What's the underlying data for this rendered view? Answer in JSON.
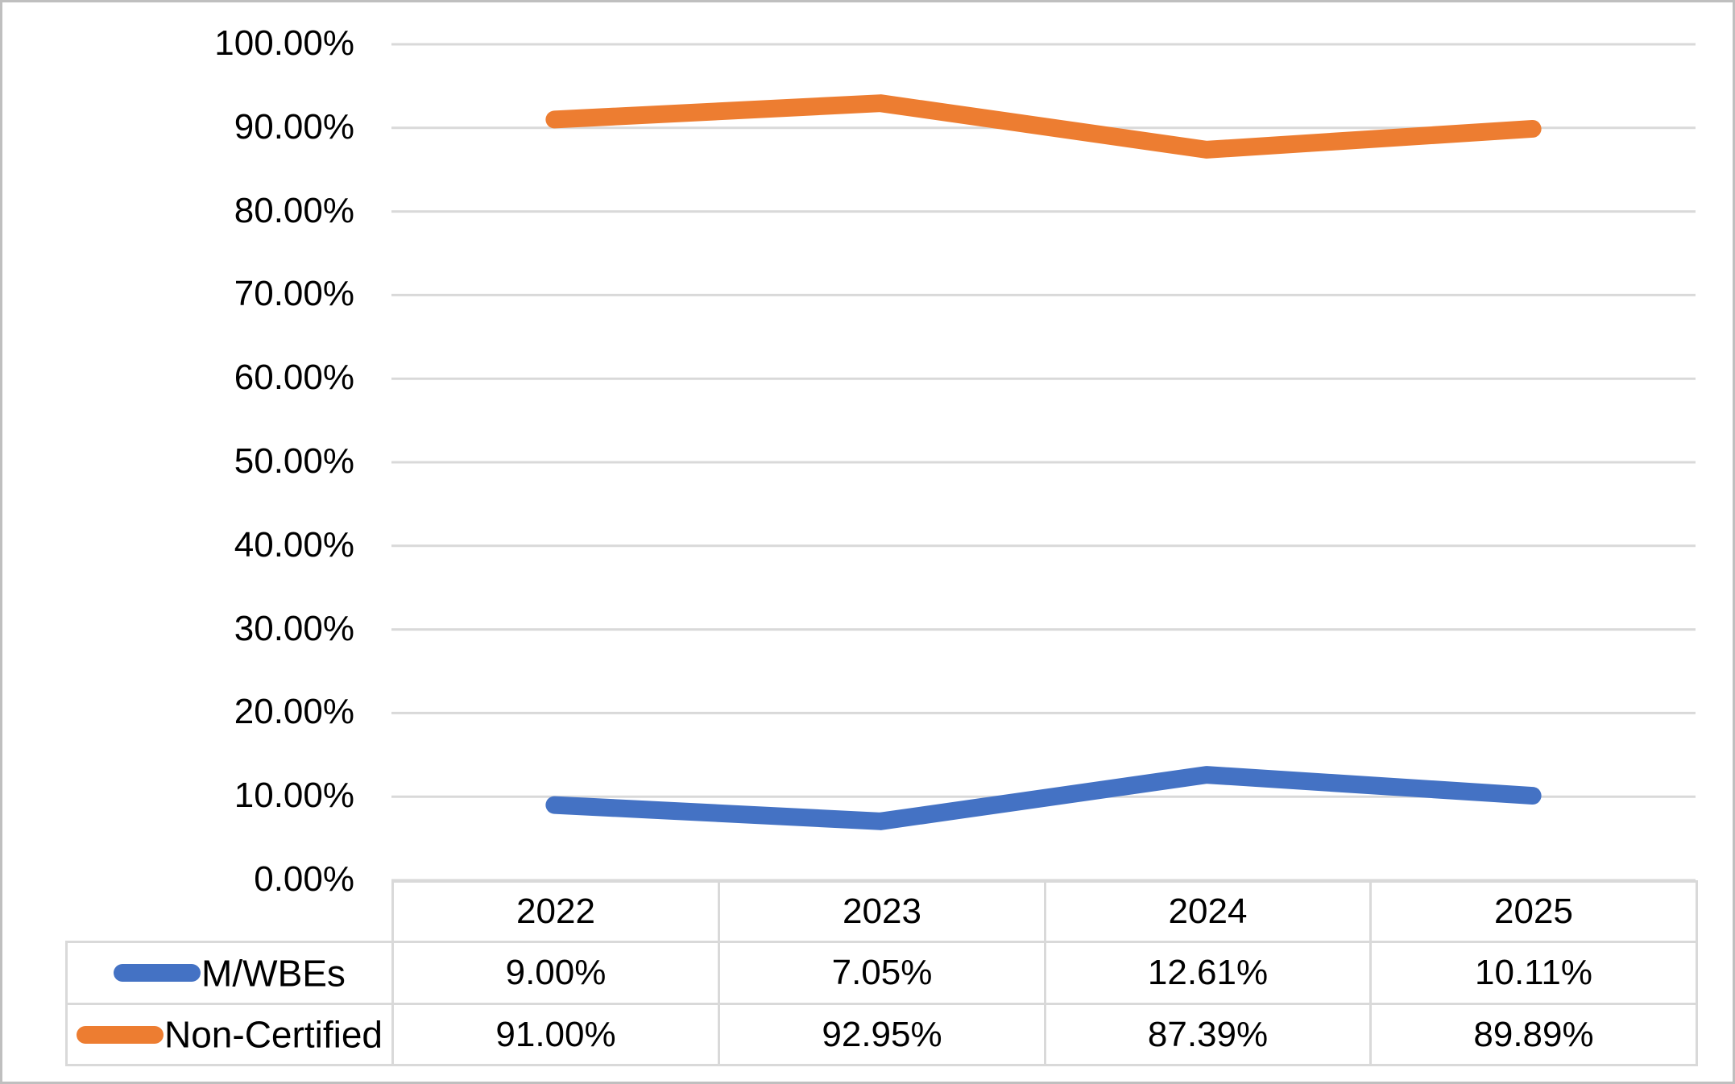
{
  "chart_data": {
    "type": "line",
    "title": "",
    "categories": [
      "2022",
      "2023",
      "2024",
      "2025"
    ],
    "series": [
      {
        "name": "M/WBEs",
        "color": "#4472C4",
        "values": [
          9.0,
          7.05,
          12.61,
          10.11
        ],
        "formatted": [
          "9.00%",
          "7.05%",
          "12.61%",
          "10.11%"
        ]
      },
      {
        "name": "Non-Certified",
        "color": "#ED7D31",
        "values": [
          91.0,
          92.95,
          87.39,
          89.89
        ],
        "formatted": [
          "91.00%",
          "92.95%",
          "87.39%",
          "89.89%"
        ]
      }
    ],
    "y_axis": {
      "min": 0,
      "max": 100,
      "step": 10,
      "tick_labels": [
        "0.00%",
        "10.00%",
        "20.00%",
        "30.00%",
        "40.00%",
        "50.00%",
        "60.00%",
        "70.00%",
        "80.00%",
        "90.00%",
        "100.00%"
      ]
    },
    "x_axis": {
      "label": ""
    },
    "grid": true,
    "legend_position": "data-table-left",
    "data_table_shown": true,
    "line_width": 22
  },
  "colors": {
    "gridline": "#D9D9D9",
    "table_border": "#D9D9D9",
    "frame_border": "#BFBFBF",
    "text": "#000000",
    "background": "#FFFFFF"
  }
}
